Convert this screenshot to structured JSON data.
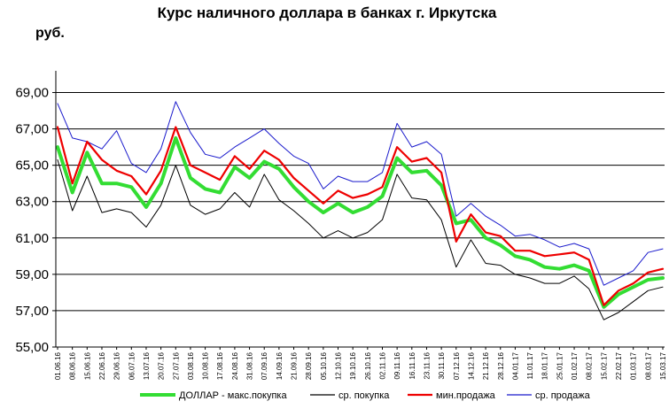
{
  "chart_data": {
    "type": "line",
    "title": "Курс наличного доллара  в банках г. Иркутска",
    "ylabel": "руб.",
    "xlabel": "",
    "ylim": [
      55,
      70
    ],
    "yticks": [
      "55,00",
      "57,00",
      "59,00",
      "61,00",
      "63,00",
      "65,00",
      "67,00",
      "69,00"
    ],
    "ytick_values": [
      55,
      57,
      59,
      61,
      63,
      65,
      67,
      69
    ],
    "grid": "horizontal",
    "legend_position": "bottom",
    "x_tick_labels": [
      "01.06.16",
      "08.06.16",
      "15.06.16",
      "22.06.16",
      "29.06.16",
      "06.07.16",
      "13.07.16",
      "20.07.16",
      "27.07.16",
      "03.08.16",
      "10.08.16",
      "17.08.16",
      "24.08.16",
      "31.08.16",
      "07.09.16",
      "14.09.16",
      "21.09.16",
      "28.09.16",
      "05.10.16",
      "12.10.16",
      "19.10.16",
      "26.10.16",
      "02.11.16",
      "09.11.16",
      "16.11.16",
      "23.11.16",
      "30.11.16",
      "07.12.16",
      "14.12.16",
      "21.12.16",
      "28.12.16",
      "04.01.17",
      "11.01.17",
      "18.01.17",
      "25.01.17",
      "01.02.17",
      "08.02.17",
      "15.02.17",
      "22.02.17",
      "01.03.17",
      "08.03.17",
      "15.03.17"
    ],
    "series": [
      {
        "name": "ДОЛЛАР - макс.покупка",
        "color": "#33dd33",
        "width": 4,
        "values": [
          66.0,
          63.5,
          65.7,
          64.0,
          64.0,
          63.8,
          62.7,
          64.0,
          66.5,
          64.3,
          63.7,
          63.5,
          64.9,
          64.3,
          65.2,
          64.8,
          63.8,
          63.0,
          62.4,
          62.9,
          62.4,
          62.7,
          63.3,
          65.4,
          64.6,
          64.7,
          63.9,
          61.8,
          62.0,
          61.0,
          60.6,
          60.0,
          59.8,
          59.4,
          59.3,
          59.5,
          59.2,
          57.2,
          57.9,
          58.3,
          58.7,
          58.8
        ]
      },
      {
        "name": "ср. покупка",
        "color": "#000000",
        "width": 1,
        "values": [
          65.3,
          62.5,
          64.4,
          62.4,
          62.6,
          62.4,
          61.6,
          62.8,
          65.0,
          62.8,
          62.3,
          62.6,
          63.5,
          62.7,
          64.5,
          63.1,
          62.5,
          61.8,
          61.0,
          61.4,
          61.0,
          61.3,
          62.0,
          64.5,
          63.2,
          63.1,
          62.0,
          59.4,
          60.9,
          59.6,
          59.5,
          59.0,
          58.8,
          58.5,
          58.5,
          58.9,
          58.2,
          56.5,
          56.9,
          57.5,
          58.1,
          58.3
        ]
      },
      {
        "name": "мин.продажа",
        "color": "#ee0000",
        "width": 2.2,
        "values": [
          67.1,
          64.0,
          66.3,
          65.3,
          64.7,
          64.4,
          63.4,
          64.7,
          67.1,
          65.0,
          64.6,
          64.2,
          65.5,
          64.8,
          65.8,
          65.3,
          64.3,
          63.6,
          62.9,
          63.6,
          63.2,
          63.4,
          63.8,
          66.0,
          65.2,
          65.4,
          64.6,
          60.8,
          62.3,
          61.3,
          61.1,
          60.3,
          60.3,
          60.0,
          60.1,
          60.2,
          59.8,
          57.3,
          58.1,
          58.5,
          59.1,
          59.3
        ]
      },
      {
        "name": "ср. продажа",
        "color": "#1a1acc",
        "width": 1,
        "values": [
          68.4,
          66.5,
          66.3,
          65.9,
          66.9,
          65.1,
          64.6,
          65.9,
          68.5,
          66.8,
          65.6,
          65.4,
          66.0,
          66.5,
          67.0,
          66.2,
          65.5,
          65.1,
          63.7,
          64.4,
          64.1,
          64.1,
          64.6,
          67.3,
          66.0,
          66.3,
          65.6,
          62.2,
          62.9,
          62.2,
          61.7,
          61.1,
          61.2,
          60.9,
          60.5,
          60.7,
          60.4,
          58.4,
          58.8,
          59.2,
          60.2,
          60.4
        ]
      }
    ]
  }
}
